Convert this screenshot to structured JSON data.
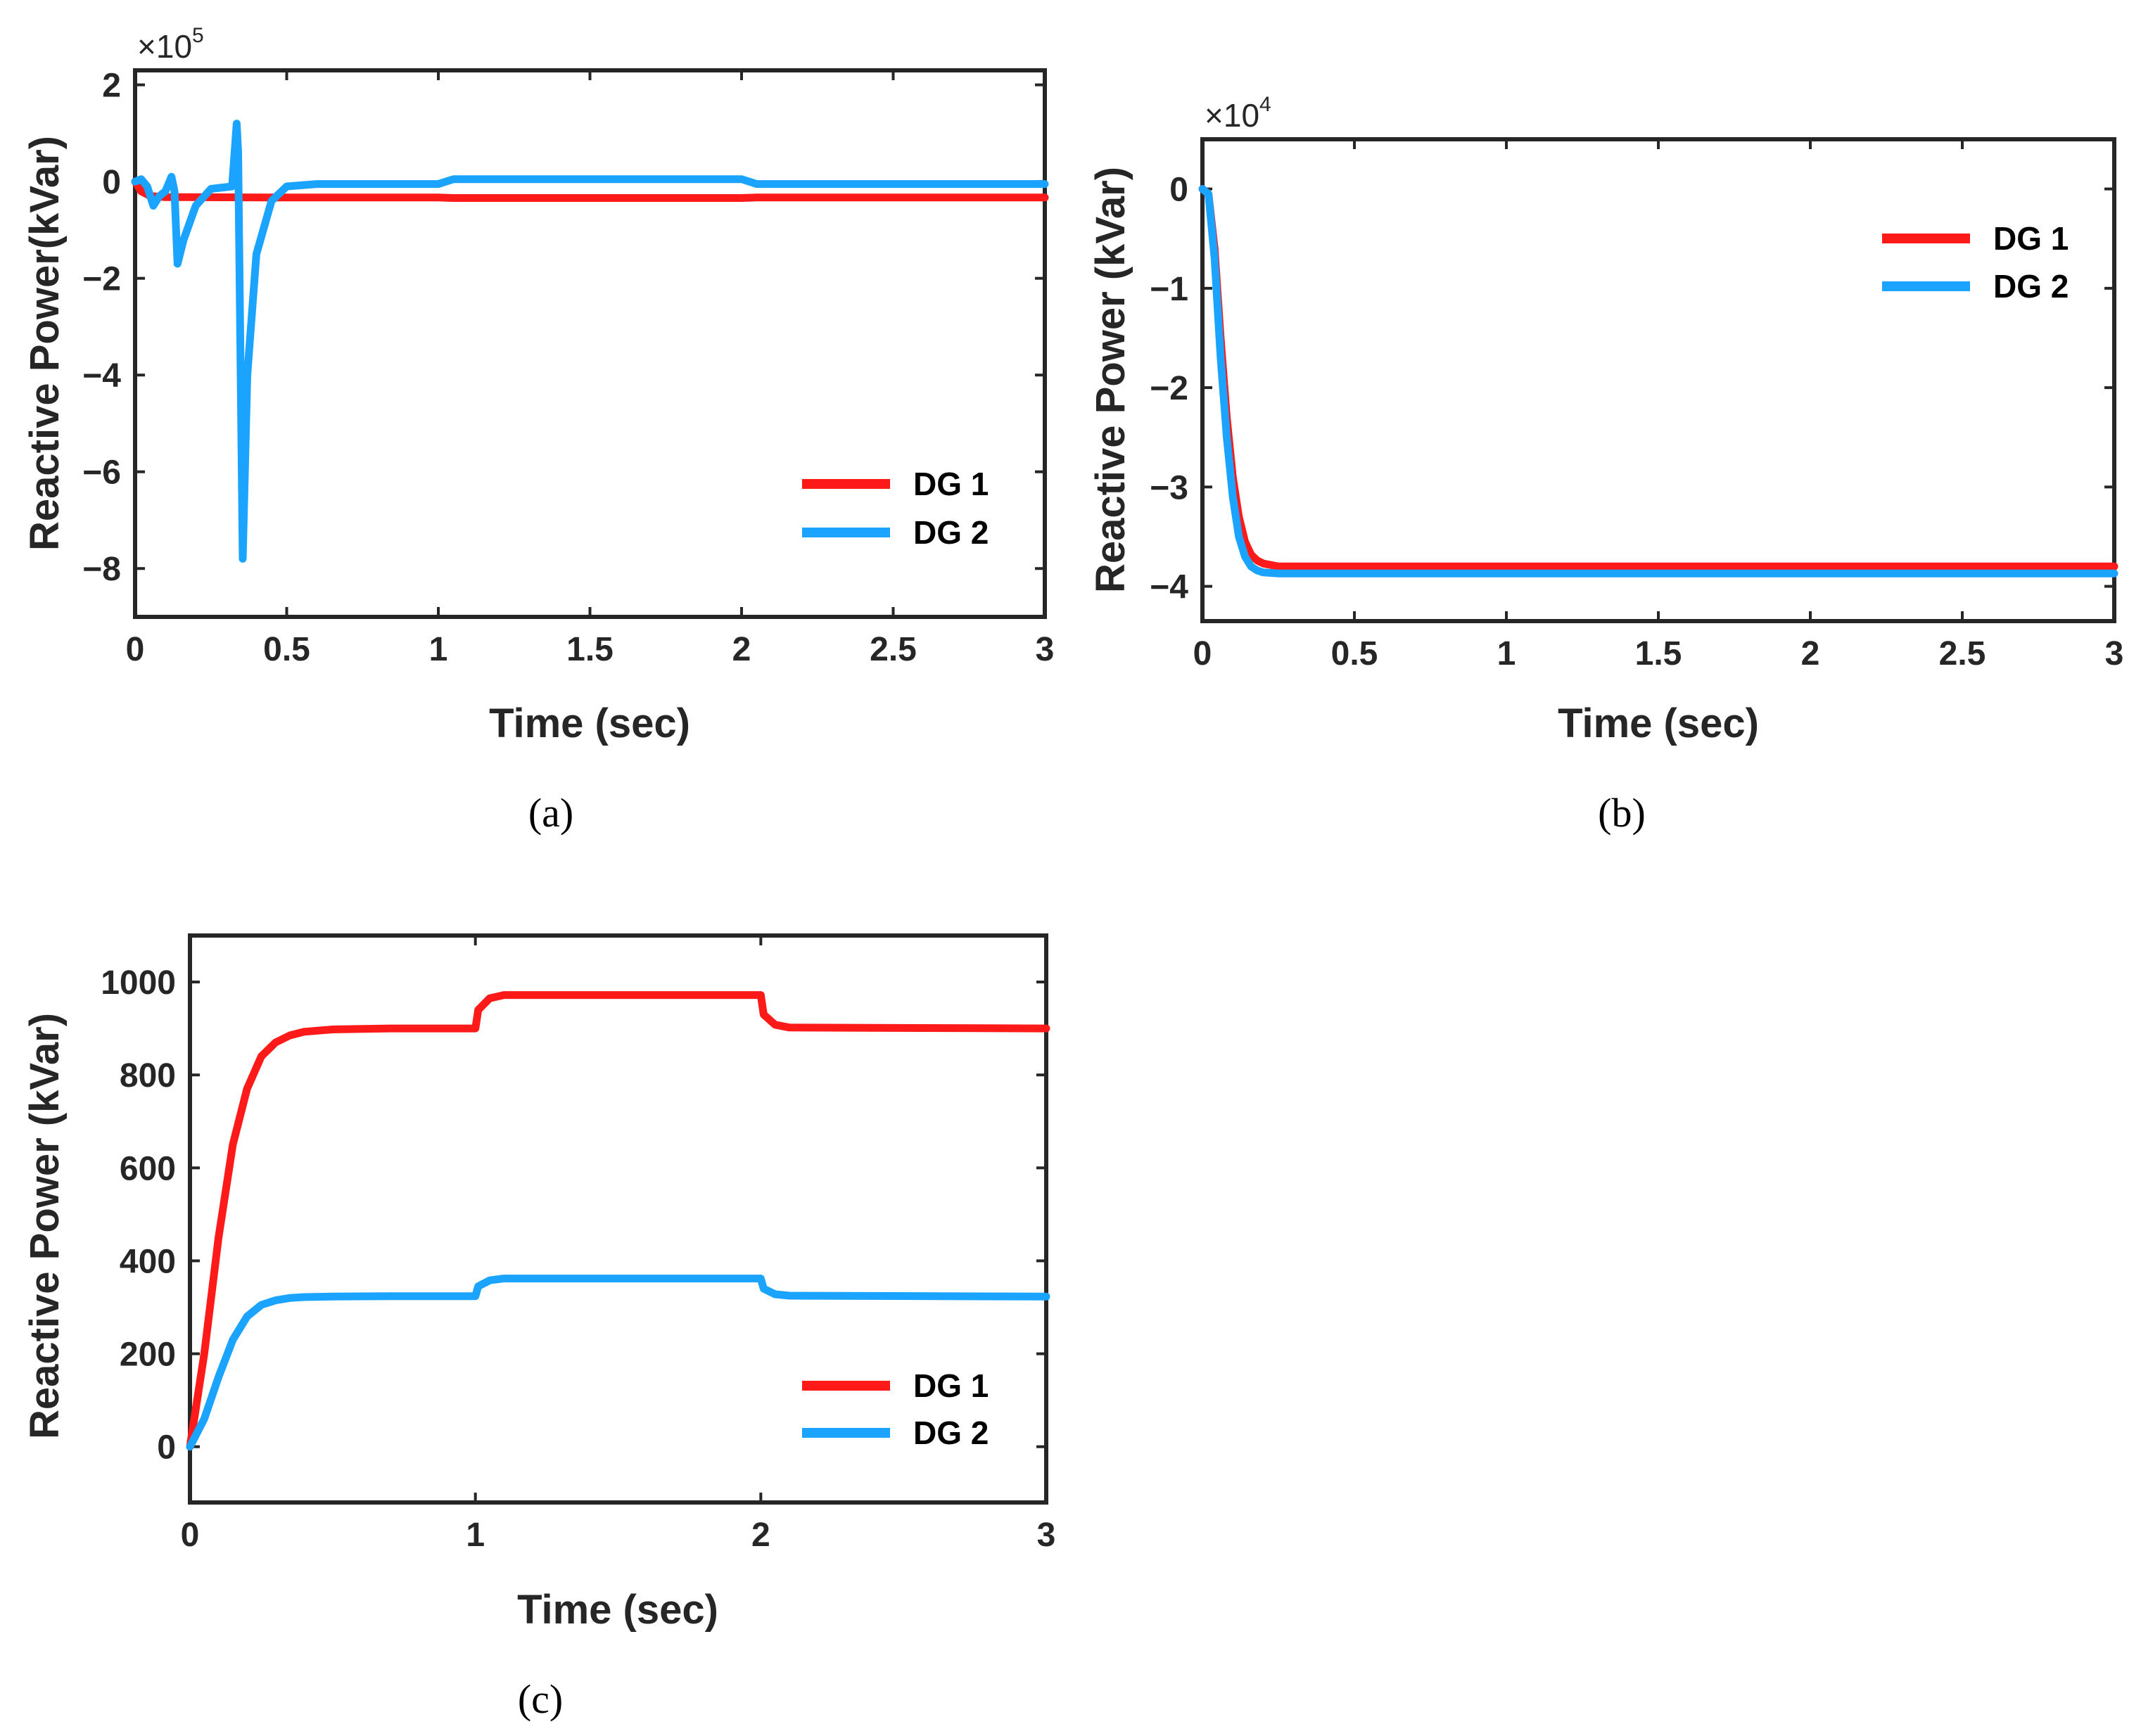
{
  "colors": {
    "dg1": "#ff1a1a",
    "dg2": "#1aa3ff",
    "axis": "#262626"
  },
  "charts": [
    {
      "id": "a",
      "type": "line",
      "caption": "(a)",
      "xlabel": "Time (sec)",
      "ylabel": "Reactive Power(kVar)",
      "xlim": [
        0,
        3
      ],
      "ylim": [
        -9,
        2.3
      ],
      "xticks": [
        0,
        0.5,
        1,
        1.5,
        2,
        2.5,
        3
      ],
      "xtick_labels": [
        "0",
        "0.5",
        "1",
        "1.5",
        "2",
        "2.5",
        "3"
      ],
      "yticks": [
        2,
        0,
        -2,
        -4,
        -6,
        -8
      ],
      "ytick_labels": [
        "2",
        "0",
        "−2",
        "−4",
        "−6",
        "−8"
      ],
      "multiplier": {
        "base": "×10",
        "exp": "5"
      },
      "legend": {
        "position": "bottom-right",
        "entries": [
          "DG 1",
          "DG 2"
        ]
      },
      "series": [
        {
          "name": "DG 1",
          "x": [
            0,
            0.02,
            0.05,
            0.1,
            0.5,
            1,
            1.05,
            2,
            2.05,
            3
          ],
          "y": [
            0,
            -0.2,
            -0.3,
            -0.32,
            -0.33,
            -0.33,
            -0.34,
            -0.34,
            -0.33,
            -0.33
          ]
        },
        {
          "name": "DG 2",
          "x": [
            0,
            0.02,
            0.04,
            0.06,
            0.08,
            0.1,
            0.12,
            0.13,
            0.14,
            0.16,
            0.2,
            0.25,
            0.32,
            0.335,
            0.34,
            0.355,
            0.37,
            0.4,
            0.45,
            0.5,
            0.6,
            1,
            1.05,
            2,
            2.05,
            3
          ],
          "y": [
            0,
            0.05,
            -0.1,
            -0.5,
            -0.3,
            -0.2,
            0.1,
            -0.2,
            -1.7,
            -1.2,
            -0.5,
            -0.15,
            -0.1,
            1.2,
            0.6,
            -7.8,
            -4,
            -1.5,
            -0.4,
            -0.1,
            -0.05,
            -0.05,
            0.05,
            0.05,
            -0.05,
            -0.05
          ]
        }
      ]
    },
    {
      "id": "b",
      "type": "line",
      "caption": "(b)",
      "xlabel": "Time (sec)",
      "ylabel": "Reactive Power (kVar)",
      "xlim": [
        0,
        3
      ],
      "ylim": [
        -4.35,
        0.5
      ],
      "xticks": [
        0,
        0.5,
        1,
        1.5,
        2,
        2.5,
        3
      ],
      "xtick_labels": [
        "0",
        "0.5",
        "1",
        "1.5",
        "2",
        "2.5",
        "3"
      ],
      "yticks": [
        0,
        -1,
        -2,
        -3,
        -4
      ],
      "ytick_labels": [
        "0",
        "−1",
        "−2",
        "−3",
        "−4"
      ],
      "multiplier": {
        "base": "×10",
        "exp": "4"
      },
      "legend": {
        "position": "top-right",
        "entries": [
          "DG 1",
          "DG 2"
        ]
      },
      "series": [
        {
          "name": "DG 1",
          "x": [
            0,
            0.02,
            0.04,
            0.06,
            0.08,
            0.1,
            0.12,
            0.14,
            0.16,
            0.18,
            0.2,
            0.25,
            0.3,
            3
          ],
          "y": [
            0,
            -0.05,
            -0.6,
            -1.5,
            -2.3,
            -2.9,
            -3.3,
            -3.55,
            -3.68,
            -3.74,
            -3.77,
            -3.8,
            -3.8,
            -3.8
          ]
        },
        {
          "name": "DG 2",
          "x": [
            0,
            0.02,
            0.04,
            0.06,
            0.08,
            0.1,
            0.12,
            0.14,
            0.16,
            0.18,
            0.2,
            0.25,
            0.3,
            3
          ],
          "y": [
            0,
            -0.05,
            -0.7,
            -1.7,
            -2.5,
            -3.1,
            -3.5,
            -3.7,
            -3.8,
            -3.84,
            -3.86,
            -3.87,
            -3.87,
            -3.87
          ]
        }
      ]
    },
    {
      "id": "c",
      "type": "line",
      "caption": "(c)",
      "xlabel": "Time (sec)",
      "ylabel": "Reactive Power (kVar)",
      "xlim": [
        0,
        3
      ],
      "ylim": [
        -120,
        1100
      ],
      "xticks": [
        0,
        1,
        2,
        3
      ],
      "xtick_labels": [
        "0",
        "1",
        "2",
        "3"
      ],
      "yticks": [
        1000,
        800,
        600,
        400,
        200,
        0
      ],
      "ytick_labels": [
        "1000",
        "800",
        "600",
        "400",
        "200",
        "0"
      ],
      "multiplier": null,
      "legend": {
        "position": "bottom-right",
        "entries": [
          "DG 1",
          "DG 2"
        ]
      },
      "series": [
        {
          "name": "DG 1",
          "x": [
            0,
            0.05,
            0.1,
            0.15,
            0.2,
            0.25,
            0.3,
            0.35,
            0.4,
            0.5,
            0.7,
            1.0,
            1.01,
            1.05,
            1.1,
            1.5,
            2.0,
            2.01,
            2.05,
            2.1,
            3
          ],
          "y": [
            0,
            200,
            450,
            650,
            770,
            840,
            870,
            885,
            893,
            898,
            900,
            900,
            940,
            965,
            972,
            972,
            972,
            930,
            908,
            902,
            900
          ]
        },
        {
          "name": "DG 2",
          "x": [
            0,
            0.05,
            0.1,
            0.15,
            0.2,
            0.25,
            0.3,
            0.35,
            0.4,
            0.5,
            0.7,
            1.0,
            1.01,
            1.05,
            1.1,
            1.5,
            2.0,
            2.01,
            2.05,
            2.1,
            3
          ],
          "y": [
            0,
            60,
            150,
            230,
            280,
            305,
            315,
            320,
            322,
            323,
            324,
            324,
            345,
            358,
            362,
            362,
            362,
            340,
            328,
            325,
            323
          ]
        }
      ]
    }
  ]
}
